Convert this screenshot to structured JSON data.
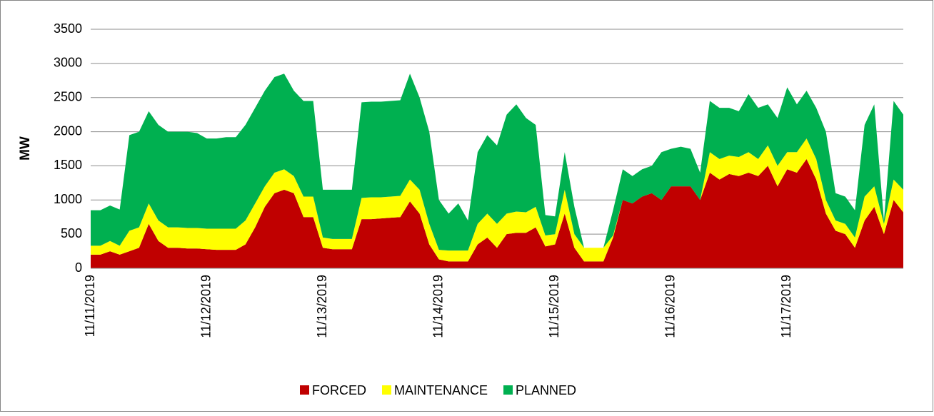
{
  "chart_data": {
    "type": "stacked-area",
    "y_label": "MW",
    "categories": [
      "11/11/2019",
      null,
      null,
      null,
      null,
      null,
      null,
      null,
      null,
      null,
      null,
      null,
      "11/12/2019",
      null,
      null,
      null,
      null,
      null,
      null,
      null,
      null,
      null,
      null,
      null,
      "11/13/2019",
      null,
      null,
      null,
      null,
      null,
      null,
      null,
      null,
      null,
      null,
      null,
      "11/14/2019",
      null,
      null,
      null,
      null,
      null,
      null,
      null,
      null,
      null,
      null,
      null,
      "11/15/2019",
      null,
      null,
      null,
      null,
      null,
      null,
      null,
      null,
      null,
      null,
      null,
      "11/16/2019",
      null,
      null,
      null,
      null,
      null,
      null,
      null,
      null,
      null,
      null,
      null,
      "11/17/2019",
      null,
      null,
      null,
      null,
      null,
      null,
      null,
      null,
      null,
      null,
      null,
      null
    ],
    "series": [
      {
        "name": "FORCED",
        "color": "#c00000",
        "values": [
          200,
          200,
          250,
          200,
          250,
          300,
          650,
          400,
          300,
          300,
          290,
          290,
          280,
          270,
          270,
          270,
          350,
          600,
          900,
          1100,
          1150,
          1100,
          750,
          750,
          300,
          280,
          280,
          280,
          720,
          720,
          730,
          740,
          750,
          980,
          800,
          350,
          130,
          100,
          100,
          100,
          350,
          450,
          300,
          500,
          520,
          520,
          600,
          320,
          350,
          800,
          300,
          100,
          100,
          100,
          450,
          1000,
          950,
          1050,
          1100,
          1000,
          1200,
          1200,
          1200,
          1000,
          1400,
          1300,
          1380,
          1350,
          1400,
          1350,
          1500,
          1200,
          1450,
          1400,
          1600,
          1300,
          800,
          550,
          500,
          300,
          700,
          900,
          500,
          1000,
          820
        ]
      },
      {
        "name": "MAINTENANCE",
        "color": "#ffff00",
        "values": [
          130,
          130,
          150,
          130,
          300,
          300,
          300,
          300,
          300,
          300,
          300,
          300,
          300,
          310,
          310,
          310,
          350,
          350,
          300,
          300,
          300,
          250,
          300,
          300,
          150,
          150,
          150,
          150,
          310,
          320,
          310,
          310,
          310,
          320,
          350,
          300,
          140,
          160,
          160,
          160,
          300,
          350,
          350,
          300,
          310,
          300,
          300,
          160,
          150,
          350,
          200,
          200,
          200,
          200,
          30,
          0,
          0,
          0,
          0,
          0,
          0,
          0,
          0,
          0,
          300,
          300,
          270,
          280,
          300,
          250,
          300,
          300,
          250,
          300,
          300,
          300,
          200,
          150,
          150,
          150,
          350,
          300,
          150,
          300,
          330
        ]
      },
      {
        "name": "PLANNED",
        "color": "#00b050",
        "values": [
          520,
          520,
          520,
          530,
          1400,
          1400,
          1350,
          1400,
          1400,
          1400,
          1410,
          1390,
          1320,
          1320,
          1340,
          1340,
          1400,
          1400,
          1400,
          1400,
          1400,
          1250,
          1400,
          1400,
          700,
          720,
          720,
          720,
          1400,
          1400,
          1400,
          1400,
          1400,
          1550,
          1350,
          1350,
          730,
          540,
          690,
          440,
          1050,
          1150,
          1150,
          1450,
          1570,
          1380,
          1200,
          300,
          260,
          550,
          400,
          0,
          0,
          0,
          370,
          450,
          400,
          400,
          400,
          700,
          550,
          580,
          550,
          400,
          750,
          750,
          700,
          670,
          850,
          750,
          600,
          700,
          950,
          700,
          700,
          750,
          1000,
          400,
          400,
          400,
          1050,
          1200,
          50,
          1150,
          1100
        ]
      }
    ],
    "ylim": [
      0,
      3500
    ],
    "yticks": [
      0,
      500,
      1000,
      1500,
      2000,
      2500,
      3000,
      3500
    ],
    "grid": true,
    "legend": "bottom"
  }
}
